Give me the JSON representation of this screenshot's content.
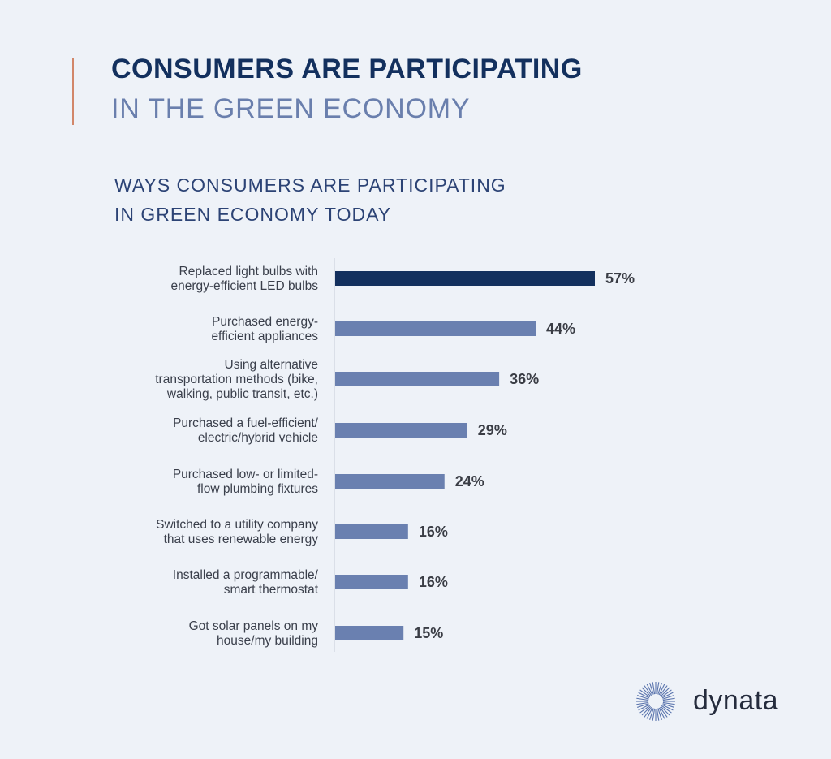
{
  "header": {
    "title_line1": "CONSUMERS ARE PARTICIPATING",
    "title_line2": "IN THE GREEN ECONOMY"
  },
  "chart_data": {
    "type": "bar",
    "orientation": "horizontal",
    "title_lines": [
      "WAYS CONSUMERS ARE PARTICIPATING",
      "IN GREEN ECONOMY TODAY"
    ],
    "categories": [
      [
        "Replaced light bulbs with",
        "energy-efficient LED bulbs"
      ],
      [
        "Purchased energy-",
        "efficient appliances"
      ],
      [
        "Using alternative",
        "transportation methods (bike,",
        "walking, public transit, etc.)"
      ],
      [
        "Purchased a fuel-efficient/",
        "electric/hybrid vehicle"
      ],
      [
        "Purchased low- or limited-",
        "flow plumbing fixtures"
      ],
      [
        "Switched to a utility company",
        "that uses renewable energy"
      ],
      [
        "Installed a programmable/",
        "smart thermostat"
      ],
      [
        "Got solar panels on my",
        "house/my building"
      ]
    ],
    "values": [
      57,
      44,
      36,
      29,
      24,
      16,
      16,
      15
    ],
    "value_labels": [
      "57%",
      "44%",
      "36%",
      "29%",
      "24%",
      "16%",
      "16%",
      "15%"
    ],
    "unit": "%",
    "xlim": [
      0,
      57
    ],
    "highlight_color": "#13305e",
    "bar_color": "#6a80b0",
    "grid": false
  },
  "logo": {
    "text": "dynata",
    "icon": "starburst-icon",
    "color": "#5a74ad"
  }
}
